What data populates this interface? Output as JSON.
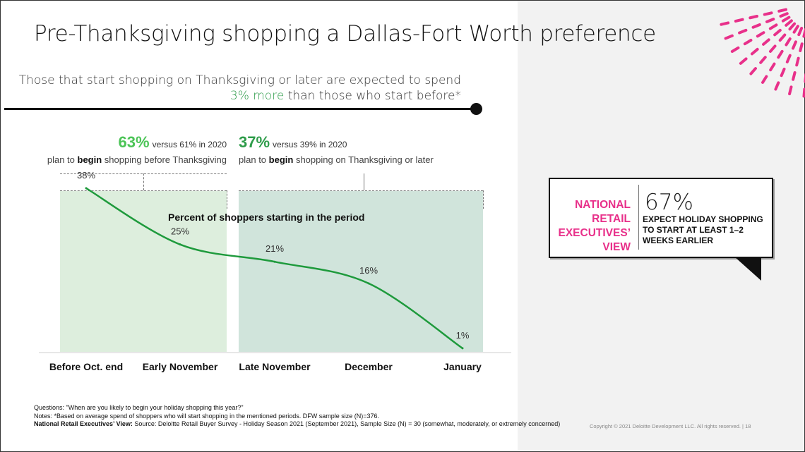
{
  "slide": {
    "title": "Pre-Thanksgiving shopping a Dallas-Fort Worth preference",
    "subtitle_line1": "Those that start shopping on Thanksgiving or later are expected to spend",
    "subtitle_highlight": "3% more",
    "subtitle_line2_rest": " than those who start before*"
  },
  "stats": {
    "before": {
      "pct": "63%",
      "comparison": "versus 61% in 2020",
      "plan_prefix": "plan to ",
      "plan_bold": "begin",
      "plan_suffix": " shopping before Thanksgiving"
    },
    "after": {
      "pct": "37%",
      "comparison": "versus 39% in 2020",
      "plan_prefix": "plan to ",
      "plan_bold": "begin",
      "plan_suffix": " shopping on Thanksgiving or later"
    }
  },
  "chart_data": {
    "type": "line",
    "title": "Percent of shoppers starting in the period",
    "categories": [
      "Before Oct. end",
      "Early November",
      "Late November",
      "December",
      "January"
    ],
    "series": [
      {
        "values": [
          38,
          25,
          21,
          16,
          1
        ],
        "labels": [
          "38%",
          "25%",
          "21%",
          "16%",
          "1%"
        ],
        "color": "#1e9a3c"
      }
    ],
    "ylim": [
      0,
      45
    ],
    "grid": false,
    "legend": "none"
  },
  "exec_callout": {
    "label_lines": [
      "NATIONAL",
      "RETAIL",
      "EXECUTIVES’",
      "VIEW"
    ],
    "pct": "67%",
    "text": "EXPECT HOLIDAY SHOPPING TO START AT LEAST 1–2 WEEKS EARLIER",
    "label_color": "#e8308a"
  },
  "footer": {
    "questions": "Questions: \"When are you likely to begin your holiday shopping this year?\"",
    "notes": "Notes: *Based on average spend of shoppers who will start shopping in the mentioned periods. DFW sample size (N)=376.",
    "source_bold": "National Retail Executives’ View:",
    "source_rest": " Source: Deloitte Retail Buyer Survey - Holiday Season 2021 (September 2021), Sample Size (N) = 30 (somewhat, moderately, or extremely concerned)",
    "copyright": "Copyright © 2021 Deloitte Development LLC. All rights reserved.  |   18"
  },
  "colors": {
    "accent_pink": "#e8308a",
    "line_green": "#1e9a3c",
    "light_green_pct": "#4cc457",
    "dark_green_pct": "#2e9c4a"
  }
}
